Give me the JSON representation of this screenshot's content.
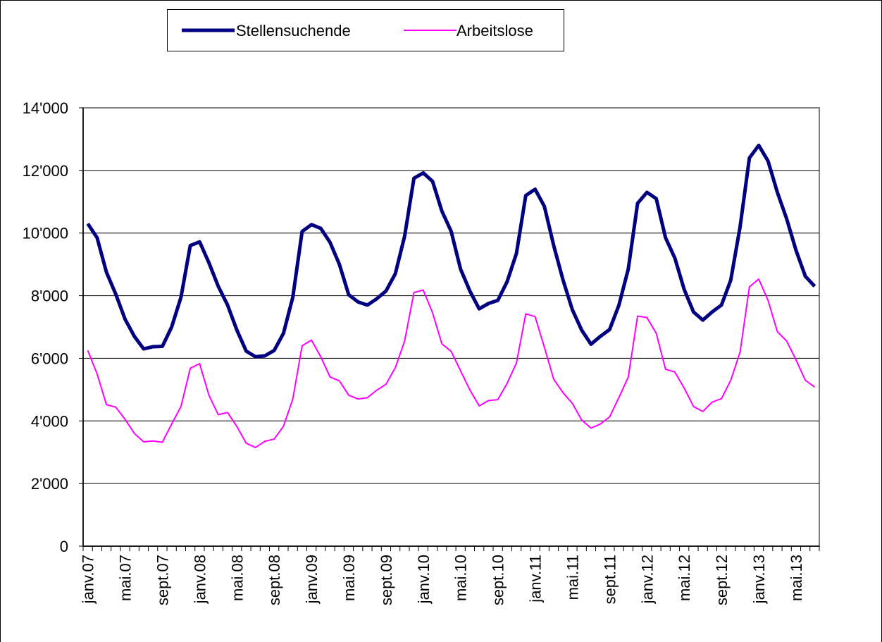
{
  "chart_data": {
    "type": "line",
    "categories": [
      "janv.07",
      null,
      null,
      null,
      "mai.07",
      null,
      null,
      null,
      "sept.07",
      null,
      null,
      null,
      "janv.08",
      null,
      null,
      null,
      "mai.08",
      null,
      null,
      null,
      "sept.08",
      null,
      null,
      null,
      "janv.09",
      null,
      null,
      null,
      "mai.09",
      null,
      null,
      null,
      "sept.09",
      null,
      null,
      null,
      "janv.10",
      null,
      null,
      null,
      "mai.10",
      null,
      null,
      null,
      "sept.10",
      null,
      null,
      null,
      "janv.11",
      null,
      null,
      null,
      "mai.11",
      null,
      null,
      null,
      "sept.11",
      null,
      null,
      null,
      "janv.12",
      null,
      null,
      null,
      "mai.12",
      null,
      null,
      null,
      "sept.12",
      null,
      null,
      null,
      "janv.13",
      null,
      null,
      null,
      "mai.13",
      null,
      null
    ],
    "series": [
      {
        "name": "Stellensuchende",
        "color": "#000080",
        "values": [
          10300,
          9850,
          8750,
          8050,
          7250,
          6700,
          6300,
          6370,
          6380,
          7000,
          7950,
          9600,
          9720,
          9050,
          8300,
          7700,
          6900,
          6230,
          6050,
          6080,
          6250,
          6800,
          7950,
          10050,
          10270,
          10150,
          9700,
          9000,
          8030,
          7800,
          7700,
          7900,
          8150,
          8700,
          9900,
          11750,
          11920,
          11650,
          10700,
          10050,
          8850,
          8150,
          7580,
          7750,
          7850,
          8450,
          9350,
          11200,
          11400,
          10850,
          9600,
          8500,
          7550,
          6900,
          6450,
          6700,
          6920,
          7700,
          8850,
          10950,
          11300,
          11100,
          9850,
          9200,
          8200,
          7480,
          7220,
          7480,
          7700,
          8500,
          10200,
          12400,
          12800,
          12300,
          11300,
          10450,
          9450,
          8620,
          8300
        ]
      },
      {
        "name": "Arbeitslose",
        "color": "#ff00ff",
        "values": [
          6250,
          5500,
          4520,
          4440,
          4050,
          3600,
          3330,
          3360,
          3320,
          3900,
          4460,
          5680,
          5830,
          4820,
          4200,
          4270,
          3820,
          3290,
          3150,
          3350,
          3420,
          3830,
          4700,
          6400,
          6580,
          6050,
          5400,
          5280,
          4820,
          4700,
          4740,
          4980,
          5170,
          5700,
          6550,
          8100,
          8180,
          7450,
          6460,
          6220,
          5600,
          4990,
          4480,
          4650,
          4680,
          5200,
          5850,
          7420,
          7330,
          6350,
          5330,
          4900,
          4560,
          4030,
          3770,
          3900,
          4130,
          4750,
          5400,
          7350,
          7300,
          6800,
          5650,
          5560,
          5050,
          4460,
          4300,
          4600,
          4710,
          5300,
          6200,
          8280,
          8530,
          7850,
          6850,
          6550,
          5950,
          5300,
          5080
        ]
      }
    ],
    "ylim": [
      0,
      14000
    ],
    "yticks": [
      0,
      {
        "value": 2000,
        "label": "2'000"
      },
      {
        "value": 4000,
        "label": "4'000"
      },
      {
        "value": 6000,
        "label": "6'000"
      },
      {
        "value": 8000,
        "label": "8'000"
      },
      {
        "value": 10000,
        "label": "10'000"
      },
      {
        "value": 12000,
        "label": "12'000"
      },
      {
        "value": 14000,
        "label": "14'000"
      }
    ],
    "grid": true
  }
}
